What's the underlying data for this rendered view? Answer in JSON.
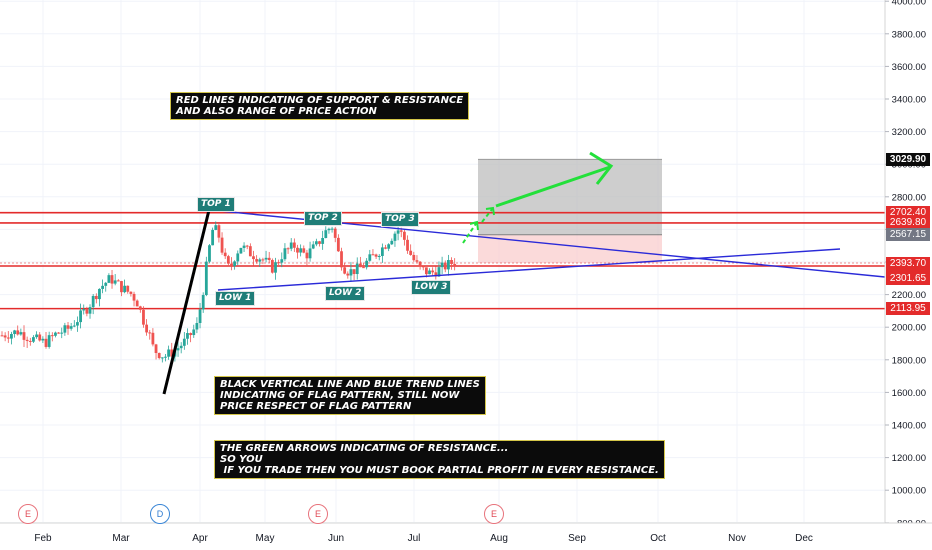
{
  "chart_data": {
    "type": "candlestick",
    "x_months": [
      "Feb",
      "Mar",
      "Apr",
      "May",
      "Jun",
      "Jul",
      "Aug",
      "Sep",
      "Oct",
      "Nov",
      "Dec"
    ],
    "y_ticks": [
      800,
      1000,
      1200,
      1400,
      1600,
      1800,
      2000,
      2200,
      2400,
      2600,
      2800,
      3000,
      3200,
      3400,
      3600,
      3800,
      4000
    ],
    "ylim": [
      780,
      4040
    ],
    "close_path": [
      [
        0,
        1950
      ],
      [
        3,
        1975
      ],
      [
        5,
        1935
      ],
      [
        8,
        1905
      ],
      [
        10,
        1960
      ],
      [
        12,
        1985
      ],
      [
        14,
        2050
      ],
      [
        16,
        2130
      ],
      [
        18,
        2240
      ],
      [
        20,
        2300
      ],
      [
        22,
        2245
      ],
      [
        24,
        2200
      ],
      [
        25,
        2150
      ],
      [
        26,
        2050
      ],
      [
        27,
        1980
      ],
      [
        28,
        1860
      ],
      [
        30,
        1820
      ],
      [
        32,
        1860
      ],
      [
        34,
        1920
      ],
      [
        36,
        2010
      ],
      [
        37,
        2200
      ],
      [
        38,
        2440
      ],
      [
        39,
        2620
      ],
      [
        40,
        2560
      ],
      [
        41,
        2420
      ],
      [
        42,
        2350
      ],
      [
        43,
        2440
      ],
      [
        44,
        2500
      ],
      [
        46,
        2450
      ],
      [
        48,
        2420
      ],
      [
        50,
        2360
      ],
      [
        52,
        2460
      ],
      [
        54,
        2500
      ],
      [
        56,
        2440
      ],
      [
        58,
        2500
      ],
      [
        60,
        2600
      ],
      [
        61,
        2620
      ],
      [
        62,
        2460
      ],
      [
        63,
        2370
      ],
      [
        64,
        2340
      ],
      [
        66,
        2360
      ],
      [
        68,
        2420
      ],
      [
        70,
        2480
      ],
      [
        72,
        2560
      ],
      [
        73,
        2600
      ],
      [
        74,
        2560
      ],
      [
        75,
        2470
      ],
      [
        76,
        2410
      ],
      [
        77,
        2360
      ],
      [
        79,
        2330
      ],
      [
        81,
        2360
      ],
      [
        83,
        2395
      ],
      [
        84,
        2400
      ]
    ],
    "days_total": 160,
    "horizontal_levels": [
      {
        "price": 2702.4,
        "label": "2702.40",
        "color": "#e32b2b"
      },
      {
        "price": 2639.8,
        "label": "2639.80",
        "color": "#e32b2b"
      },
      {
        "price": 2375.45,
        "label": "2375.45",
        "color": "#e32b2b"
      },
      {
        "price": 2113.95,
        "label": "2113.95",
        "color": "#e32b2b"
      }
    ],
    "price_labels": [
      {
        "price": 3029.9,
        "label": "3029.90",
        "bg": "#0b0b0b",
        "fg": "#ffffff",
        "bold": true
      },
      {
        "price": 2567.15,
        "label": "2567.15",
        "bg": "#737784",
        "fg": "#ffffff"
      },
      {
        "price": 2393.7,
        "label": "2393.70",
        "bg": "#e32b2b",
        "fg": "#ffffff"
      },
      {
        "price": 2301.65,
        "label": "2301.65",
        "bg": "#e32b2b",
        "fg": "#ffffff"
      }
    ],
    "current_price": 2393.7,
    "events": [
      {
        "letter": "E",
        "day": -13
      },
      {
        "letter": "D",
        "day": 31
      },
      {
        "letter": "E",
        "day": 72
      },
      {
        "letter": "E",
        "day": 116
      }
    ]
  },
  "annotations": {
    "note_red_lines": "RED LINES INDICATING OF SUPPORT & RESISTANCE\nAND ALSO RANGE OF PRICE ACTION",
    "note_flag": "BLACK VERTICAL LINE AND BLUE TREND LINES\nINDICATING OF FLAG PATTERN, STILL NOW\nPRICE RESPECT OF FLAG PATTERN",
    "note_green": "THE GREEN ARROWS INDICATING OF RESISTANCE...\nSO YOU\n IF YOU TRADE THEN YOU MUST BOOK PARTIAL PROFIT IN EVERY RESISTANCE.",
    "top1": "TOP 1",
    "top2": "TOP 2",
    "top3": "TOP 3",
    "low1": "LOW 1",
    "low2": "LOW 2",
    "low3": "LOW 3"
  },
  "colors": {
    "bull": "#26a69a",
    "bear": "#ef5350",
    "level": "#e32b2b",
    "trend": "#2a2ad8",
    "flagpole": "#000000",
    "arrow": "#23e03a"
  }
}
